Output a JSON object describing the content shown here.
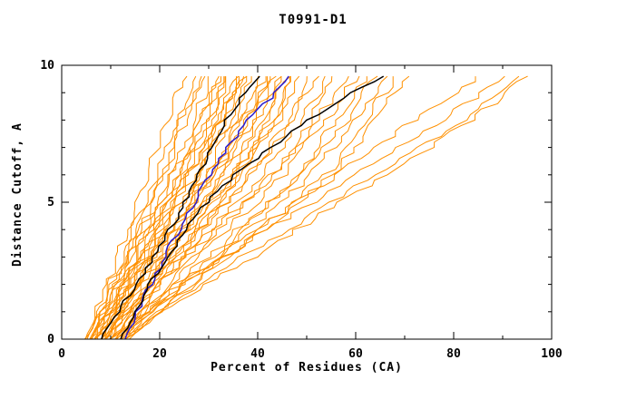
{
  "chart_data": {
    "type": "line",
    "title": "T0991-D1",
    "xlabel": "Percent of Residues (CA)",
    "ylabel": "Distance Cutoff, A",
    "xlim": [
      0,
      100
    ],
    "ylim": [
      0,
      10
    ],
    "x_major_ticks": [
      0,
      20,
      40,
      60,
      80,
      100
    ],
    "x_minor_ticks": [
      10,
      30,
      50,
      70,
      90
    ],
    "y_major_ticks": [
      0,
      5,
      10
    ],
    "y_minor_ticks": [
      1,
      2,
      3,
      4,
      6,
      7,
      8,
      9
    ],
    "grid": false,
    "legend": "none",
    "colors": {
      "model": "#ff9000",
      "reference": "#2a1acc",
      "highlight": "#000000"
    },
    "y_levels": [
      0,
      2,
      4,
      6,
      8,
      9.6
    ],
    "series": [
      {
        "role": "model",
        "x_at_levels": [
          5,
          9,
          13,
          17,
          21,
          25
        ]
      },
      {
        "role": "model",
        "x_at_levels": [
          6,
          10,
          14,
          19,
          23,
          27
        ]
      },
      {
        "role": "model",
        "x_at_levels": [
          5,
          10,
          15,
          20,
          24,
          28
        ]
      },
      {
        "role": "model",
        "x_at_levels": [
          7,
          11,
          16,
          21,
          25,
          29
        ]
      },
      {
        "role": "model",
        "x_at_levels": [
          6,
          11,
          16,
          22,
          27,
          30
        ]
      },
      {
        "role": "model",
        "x_at_levels": [
          8,
          13,
          18,
          23,
          28,
          31
        ]
      },
      {
        "role": "model",
        "x_at_levels": [
          5,
          11,
          17,
          23,
          28,
          32
        ]
      },
      {
        "role": "model",
        "x_at_levels": [
          7,
          12,
          18,
          24,
          29,
          33
        ]
      },
      {
        "role": "model",
        "x_at_levels": [
          9,
          14,
          19,
          25,
          30,
          33
        ]
      },
      {
        "role": "model",
        "x_at_levels": [
          6,
          12,
          18,
          25,
          30,
          34
        ]
      },
      {
        "role": "model",
        "x_at_levels": [
          8,
          14,
          20,
          26,
          31,
          35
        ]
      },
      {
        "role": "model",
        "x_at_levels": [
          5,
          12,
          19,
          26,
          32,
          36
        ]
      },
      {
        "role": "model",
        "x_at_levels": [
          10,
          15,
          21,
          27,
          32,
          36
        ]
      },
      {
        "role": "model",
        "x_at_levels": [
          7,
          13,
          20,
          27,
          33,
          37
        ]
      },
      {
        "role": "model",
        "x_at_levels": [
          9,
          15,
          22,
          28,
          33,
          37
        ]
      },
      {
        "role": "model",
        "x_at_levels": [
          6,
          13,
          21,
          28,
          34,
          38
        ]
      },
      {
        "role": "model",
        "x_at_levels": [
          8,
          15,
          22,
          29,
          35,
          39
        ]
      },
      {
        "role": "model",
        "x_at_levels": [
          11,
          17,
          23,
          30,
          36,
          40
        ]
      },
      {
        "role": "model",
        "x_at_levels": [
          7,
          14,
          22,
          30,
          37,
          41
        ]
      },
      {
        "role": "model",
        "x_at_levels": [
          9,
          16,
          24,
          31,
          38,
          42
        ]
      },
      {
        "role": "model",
        "x_at_levels": [
          12,
          18,
          25,
          32,
          38,
          42
        ]
      },
      {
        "role": "model",
        "x_at_levels": [
          6,
          14,
          23,
          31,
          39,
          43
        ]
      },
      {
        "role": "model",
        "x_at_levels": [
          10,
          17,
          25,
          33,
          40,
          44
        ]
      },
      {
        "role": "model",
        "x_at_levels": [
          8,
          16,
          25,
          34,
          41,
          45
        ]
      },
      {
        "role": "model",
        "x_at_levels": [
          11,
          18,
          27,
          35,
          42,
          46
        ]
      },
      {
        "role": "model",
        "x_at_levels": [
          7,
          16,
          26,
          35,
          43,
          47
        ]
      },
      {
        "role": "model",
        "x_at_levels": [
          13,
          20,
          28,
          36,
          43,
          47
        ]
      },
      {
        "role": "model",
        "x_at_levels": [
          9,
          18,
          27,
          37,
          44,
          48
        ]
      },
      {
        "role": "model",
        "x_at_levels": [
          12,
          20,
          29,
          38,
          46,
          50
        ]
      },
      {
        "role": "model",
        "x_at_levels": [
          8,
          18,
          28,
          39,
          47,
          52
        ]
      },
      {
        "role": "model",
        "x_at_levels": [
          10,
          20,
          30,
          41,
          49,
          54
        ]
      },
      {
        "role": "model",
        "x_at_levels": [
          13,
          22,
          32,
          43,
          51,
          56
        ]
      },
      {
        "role": "model",
        "x_at_levels": [
          9,
          20,
          31,
          43,
          52,
          58
        ]
      },
      {
        "role": "model",
        "x_at_levels": [
          11,
          22,
          34,
          45,
          54,
          60
        ]
      },
      {
        "role": "model",
        "x_at_levels": [
          14,
          25,
          37,
          48,
          56,
          62
        ]
      },
      {
        "role": "model",
        "x_at_levels": [
          10,
          23,
          36,
          49,
          58,
          64
        ]
      },
      {
        "role": "model",
        "x_at_levels": [
          12,
          25,
          38,
          51,
          60,
          66
        ]
      },
      {
        "role": "model",
        "x_at_levels": [
          13,
          27,
          41,
          54,
          62,
          68
        ]
      },
      {
        "role": "model",
        "x_at_levels": [
          11,
          26,
          41,
          55,
          64,
          70
        ]
      },
      {
        "role": "model",
        "x_at_levels": [
          11,
          24,
          40,
          56,
          72,
          85
        ]
      },
      {
        "role": "model",
        "x_at_levels": [
          10,
          25,
          42,
          60,
          78,
          90
        ]
      },
      {
        "role": "model",
        "x_at_levels": [
          13,
          28,
          46,
          64,
          82,
          93
        ]
      },
      {
        "role": "model",
        "x_at_levels": [
          12,
          30,
          48,
          66,
          84,
          95
        ]
      },
      {
        "role": "reference",
        "x_at_levels": [
          13,
          18,
          24,
          30,
          38,
          47
        ]
      },
      {
        "role": "highlight",
        "x_at_levels": [
          8,
          15,
          22,
          28,
          33,
          40
        ]
      },
      {
        "role": "highlight",
        "x_at_levels": [
          12,
          18,
          25,
          35,
          50,
          65
        ]
      }
    ]
  }
}
